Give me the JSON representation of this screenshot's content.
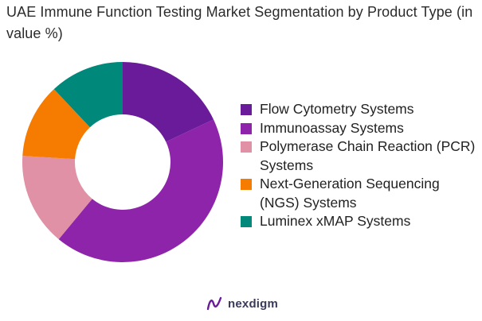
{
  "chart_data": {
    "type": "pie",
    "title": "UAE Immune Function Testing Market Segmentation by Product Type (in value %)",
    "hole": "donut",
    "categories": [
      "Flow Cytometry Systems",
      "Immunoassay Systems",
      "Polymerase Chain Reaction (PCR) Systems",
      "Next-Generation Sequencing (NGS) Systems",
      "Luminex xMAP Systems"
    ],
    "values": [
      18,
      43,
      15,
      12,
      12
    ],
    "colors": [
      "#6a1b9a",
      "#8e24aa",
      "#e091a6",
      "#f57c00",
      "#00897b"
    ],
    "legend_position": "right"
  },
  "brand": {
    "name": "nexdigm"
  }
}
